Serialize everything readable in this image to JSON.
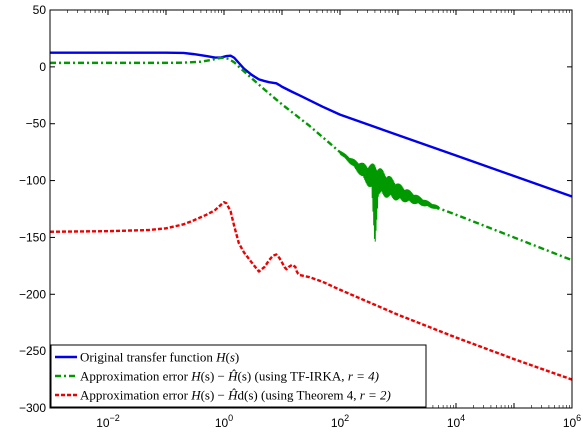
{
  "chart_data": {
    "type": "line",
    "xscale": "log",
    "xlim": [
      0.001,
      1000000
    ],
    "ylim": [
      -300,
      50
    ],
    "grid": false,
    "legend_position": "bottom-left",
    "x_ticks": [
      {
        "value": 0.01,
        "base": "10",
        "exp": "−2"
      },
      {
        "value": 1,
        "base": "10",
        "exp": "0"
      },
      {
        "value": 100,
        "base": "10",
        "exp": "2"
      },
      {
        "value": 10000,
        "base": "10",
        "exp": "4"
      },
      {
        "value": 1000000,
        "base": "10",
        "exp": "6"
      }
    ],
    "y_ticks": [
      {
        "value": 50,
        "label": "50"
      },
      {
        "value": 0,
        "label": "0"
      },
      {
        "value": -50,
        "label": "−50"
      },
      {
        "value": -100,
        "label": "−100"
      },
      {
        "value": -150,
        "label": "−150"
      },
      {
        "value": -200,
        "label": "−200"
      },
      {
        "value": -250,
        "label": "−250"
      },
      {
        "value": -300,
        "label": "−300"
      }
    ],
    "series": [
      {
        "name": "Original transfer function H(s)",
        "color": "#0000ee",
        "style": "solid",
        "x": [
          0.001,
          0.01,
          0.05,
          0.1,
          0.2,
          0.3,
          0.5,
          0.7,
          0.9,
          1.1,
          1.3,
          1.5,
          1.8,
          2.2,
          3,
          4,
          5,
          6,
          7,
          8,
          9,
          10,
          15,
          20,
          50,
          100,
          1000,
          10000,
          100000,
          1000000
        ],
        "y": [
          12.5,
          12.5,
          12.5,
          12.5,
          12.2,
          11.2,
          9.5,
          8.2,
          8.3,
          9.5,
          9.8,
          8,
          3.5,
          -1.5,
          -7,
          -11,
          -12.5,
          -13.5,
          -14,
          -14.5,
          -16,
          -17.5,
          -22,
          -25,
          -35,
          -42,
          -60,
          -78,
          -96,
          -114
        ]
      },
      {
        "name": "Approximation error H(s) − Ĥ(s) (using TF-IRKA, r = 4)",
        "color": "#009900",
        "style": "dashdot",
        "x": [
          0.001,
          0.01,
          0.1,
          0.2,
          0.4,
          0.6,
          0.8,
          1.0,
          1.2,
          1.5,
          2,
          3,
          5,
          10,
          30,
          100,
          300,
          1000,
          3000,
          10000,
          100000,
          1000000
        ],
        "y": [
          3.5,
          3.5,
          3.5,
          3.7,
          4.5,
          6,
          7.5,
          8,
          7,
          4,
          -2,
          -10,
          -20,
          -33,
          -52,
          -75,
          -95,
          -110,
          -120,
          -130,
          -150,
          -170
        ]
      },
      {
        "name": "Approximation error H(s) − Ĥd(s) (using Theorem 4, r = 2)",
        "color": "#ee0000",
        "style": "dashed",
        "x": [
          0.001,
          0.01,
          0.05,
          0.1,
          0.2,
          0.3,
          0.5,
          0.7,
          0.9,
          1.0,
          1.1,
          1.3,
          1.5,
          1.8,
          2.2,
          3,
          4,
          5,
          6,
          7,
          8,
          9,
          10,
          11,
          12,
          13,
          14,
          15,
          16,
          17,
          18,
          19,
          20,
          30,
          50,
          100,
          1000,
          10000,
          100000,
          1000000
        ],
        "y": [
          -145,
          -144.5,
          -143.5,
          -142,
          -138.5,
          -135,
          -130,
          -126,
          -121,
          -119,
          -120,
          -127,
          -140,
          -155,
          -163,
          -172,
          -180,
          -176,
          -170,
          -166,
          -165,
          -168,
          -172,
          -176,
          -178,
          -176,
          -175,
          -174,
          -175,
          -176,
          -180,
          -182,
          -183,
          -185,
          -189,
          -196,
          -218,
          -238,
          -257,
          -275
        ]
      }
    ],
    "oscillation_band": {
      "series": "Approximation error H(s) − Ĥ(s) (using TF-IRKA, r = 4)",
      "x_range": [
        100,
        5000
      ],
      "notch_x": 400,
      "notch_min_y": -145
    }
  },
  "legend": {
    "items": [
      {
        "text_a": "Original transfer function ",
        "sym": "H",
        "text_b": "(",
        "sym2": "s",
        "text_c": ")",
        "mid": "",
        "color": "#0000ee",
        "dash": "none"
      },
      {
        "text_a": "Approximation error ",
        "sym": "H",
        "text_b": "(s) − ",
        "sym2": "Ĥ",
        "text_c": "(s) (using TF-IRKA, ",
        "mid": "r = 4)",
        "color": "#009900",
        "dash": "6 3 2 3"
      },
      {
        "text_a": "Approximation error ",
        "sym": "H",
        "text_b": "(s) − ",
        "sym2": "Ĥ",
        "text_c": "d(s) (using Theorem 4, ",
        "mid": "r = 2)",
        "color": "#ee0000",
        "dash": "4 2"
      }
    ]
  }
}
